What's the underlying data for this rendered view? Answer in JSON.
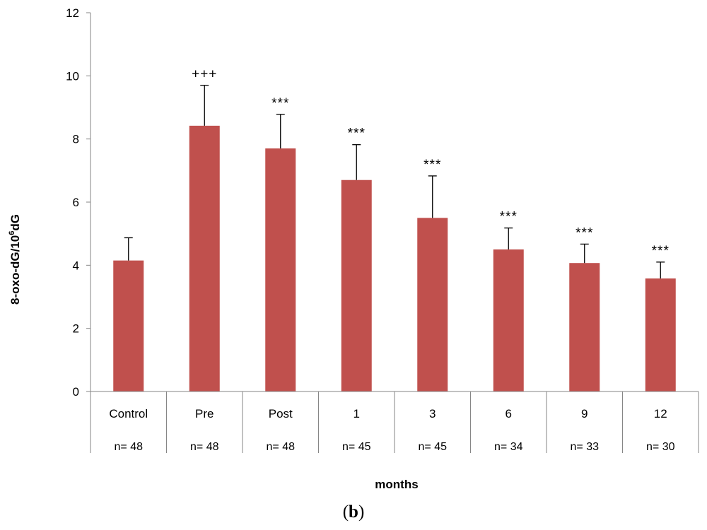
{
  "chart_data": {
    "type": "bar",
    "categories": [
      "Control",
      "Pre",
      "Post",
      "1",
      "3",
      "6",
      "9",
      "12"
    ],
    "n_labels": [
      "n= 48",
      "n= 48",
      "n= 48",
      "n= 45",
      "n= 45",
      "n= 34",
      "n= 33",
      "n= 30"
    ],
    "values": [
      4.15,
      8.42,
      7.7,
      6.7,
      5.5,
      4.5,
      4.07,
      3.58
    ],
    "errors": [
      0.72,
      1.28,
      1.08,
      1.12,
      1.33,
      0.68,
      0.6,
      0.52
    ],
    "significance": [
      "",
      "+++",
      "***",
      "***",
      "***",
      "***",
      "***",
      "***"
    ],
    "ylabel_main": "8-oxo-dG/10",
    "ylabel_sup": "6",
    "ylabel_tail": "dG",
    "xlabel": "months",
    "ylim": [
      0,
      12
    ],
    "yticks": [
      0,
      2,
      4,
      6,
      8,
      10,
      12
    ],
    "bar_color": "#c0504d",
    "grid": false,
    "panel_label": {
      "open": "(",
      "letter": "b",
      "close": ")"
    }
  }
}
